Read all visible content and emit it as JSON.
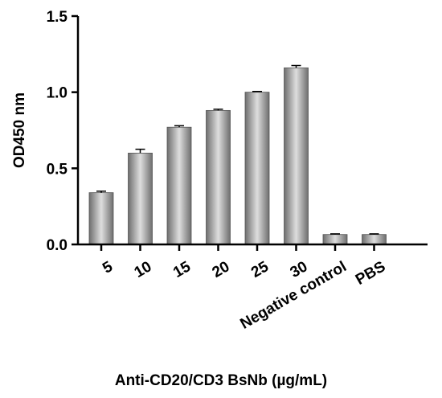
{
  "chart_data": {
    "type": "bar",
    "categories": [
      "5",
      "10",
      "15",
      "20",
      "25",
      "30",
      "Negative control",
      "PBS"
    ],
    "values": [
      0.34,
      0.6,
      0.77,
      0.88,
      1.0,
      1.16,
      0.065,
      0.065
    ],
    "errors": [
      0.01,
      0.025,
      0.01,
      0.008,
      0.005,
      0.015,
      0.004,
      0.004
    ],
    "title": "",
    "xlabel": "Anti-CD20/CD3 BsNb (µg/mL)",
    "ylabel": "OD450 nm",
    "ylim": [
      0,
      1.5
    ],
    "yticks": [
      "0.0",
      "0.5",
      "1.0",
      "1.5"
    ],
    "ytick_values": [
      0,
      0.5,
      1.0,
      1.5
    ],
    "grid": false,
    "legend": "none",
    "bar_gradient": [
      "#6e6e6e",
      "#dedede",
      "#6e6e6e"
    ]
  }
}
